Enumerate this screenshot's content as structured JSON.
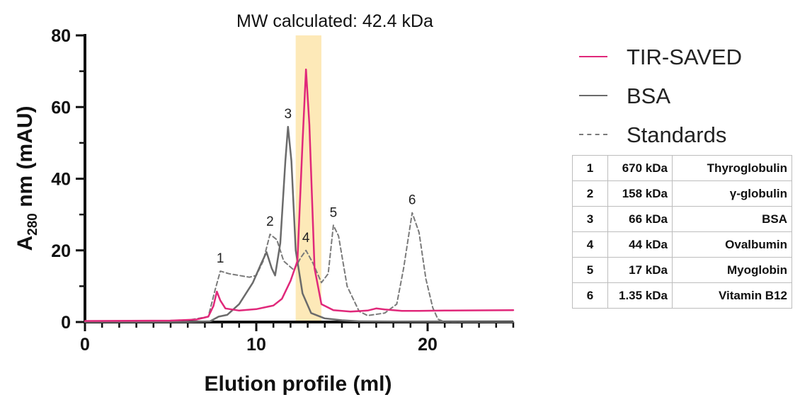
{
  "chart_data": {
    "type": "line",
    "title": "MW calculated: 42.4 kDa",
    "xlabel": "Elution profile (ml)",
    "ylabel_main": "A",
    "ylabel_sub": "280",
    "ylabel_rest": " nm (mAU)",
    "xlim": [
      0,
      25
    ],
    "ylim": [
      0,
      80
    ],
    "x_ticks": [
      0,
      10,
      20
    ],
    "y_ticks": [
      0,
      20,
      40,
      60,
      80
    ],
    "highlight_band": {
      "x_start": 12.3,
      "x_end": 13.8,
      "color": "#fde9b8"
    },
    "series": [
      {
        "name": "TIR-SAVED",
        "color": "#e0287a",
        "style": "solid",
        "points": [
          [
            0,
            0.3
          ],
          [
            5,
            0.4
          ],
          [
            6.5,
            0.7
          ],
          [
            7.2,
            1.5
          ],
          [
            7.5,
            4.5
          ],
          [
            7.7,
            8.5
          ],
          [
            7.9,
            6
          ],
          [
            8.2,
            3.8
          ],
          [
            9,
            3.2
          ],
          [
            10,
            3.6
          ],
          [
            11,
            4.6
          ],
          [
            11.5,
            6.5
          ],
          [
            12,
            11.5
          ],
          [
            12.4,
            17
          ],
          [
            12.7,
            50
          ],
          [
            12.9,
            70.5
          ],
          [
            13.1,
            55
          ],
          [
            13.4,
            15
          ],
          [
            13.8,
            5
          ],
          [
            14.5,
            3.3
          ],
          [
            15.5,
            2.9
          ],
          [
            16.5,
            3.2
          ],
          [
            17,
            3.8
          ],
          [
            17.5,
            3.5
          ],
          [
            18.5,
            3.1
          ],
          [
            19.5,
            3.1
          ],
          [
            21,
            3.2
          ],
          [
            25,
            3.3
          ]
        ]
      },
      {
        "name": "BSA",
        "color": "#6b6b6b",
        "style": "solid",
        "points": [
          [
            0,
            0
          ],
          [
            6,
            0
          ],
          [
            7.3,
            0.2
          ],
          [
            7.8,
            1.5
          ],
          [
            8.3,
            2
          ],
          [
            9,
            5
          ],
          [
            9.8,
            11
          ],
          [
            10.3,
            16.5
          ],
          [
            10.6,
            19.5
          ],
          [
            10.9,
            15
          ],
          [
            11.1,
            13
          ],
          [
            11.4,
            22
          ],
          [
            11.7,
            45
          ],
          [
            11.85,
            54.5
          ],
          [
            12.05,
            45
          ],
          [
            12.3,
            20
          ],
          [
            12.7,
            8
          ],
          [
            13.2,
            2.5
          ],
          [
            14,
            1
          ],
          [
            15,
            0.5
          ],
          [
            16,
            0.2
          ],
          [
            25,
            0
          ]
        ]
      },
      {
        "name": "Standards",
        "color": "#7a7a7a",
        "style": "dashed",
        "points": [
          [
            0,
            0
          ],
          [
            6,
            0.5
          ],
          [
            7.2,
            1.5
          ],
          [
            7.6,
            9
          ],
          [
            7.9,
            14.2
          ],
          [
            8.4,
            13.5
          ],
          [
            9,
            13
          ],
          [
            9.6,
            12.5
          ],
          [
            10,
            13
          ],
          [
            10.4,
            17
          ],
          [
            10.8,
            24.5
          ],
          [
            11.2,
            23
          ],
          [
            11.6,
            17
          ],
          [
            12.2,
            14.5
          ],
          [
            12.6,
            18
          ],
          [
            12.9,
            20
          ],
          [
            13.3,
            16.5
          ],
          [
            13.8,
            11
          ],
          [
            14.2,
            13.5
          ],
          [
            14.5,
            27
          ],
          [
            14.8,
            24
          ],
          [
            15.3,
            10
          ],
          [
            16,
            3
          ],
          [
            16.5,
            1.8
          ],
          [
            17.5,
            2.5
          ],
          [
            18.2,
            5
          ],
          [
            18.6,
            15
          ],
          [
            19.1,
            30.5
          ],
          [
            19.5,
            25
          ],
          [
            19.9,
            12
          ],
          [
            20.3,
            4
          ],
          [
            20.6,
            0.8
          ],
          [
            21,
            0
          ],
          [
            25,
            0
          ]
        ]
      }
    ],
    "peak_labels": [
      {
        "text": "1",
        "x": 7.9,
        "y": 14.2
      },
      {
        "text": "2",
        "x": 10.8,
        "y": 24.5
      },
      {
        "text": "3",
        "x": 11.85,
        "y": 54.5
      },
      {
        "text": "4",
        "x": 12.9,
        "y": 20
      },
      {
        "text": "5",
        "x": 14.5,
        "y": 27
      },
      {
        "text": "6",
        "x": 19.1,
        "y": 30.5
      }
    ]
  },
  "standards_table": [
    [
      "1",
      "670 kDa",
      "Thyroglobulin"
    ],
    [
      "2",
      "158 kDa",
      "γ-globulin"
    ],
    [
      "3",
      "66 kDa",
      "BSA"
    ],
    [
      "4",
      "44 kDa",
      "Ovalbumin"
    ],
    [
      "5",
      "17 kDa",
      "Myoglobin"
    ],
    [
      "6",
      "1.35 kDa",
      "Vitamin B12"
    ]
  ]
}
